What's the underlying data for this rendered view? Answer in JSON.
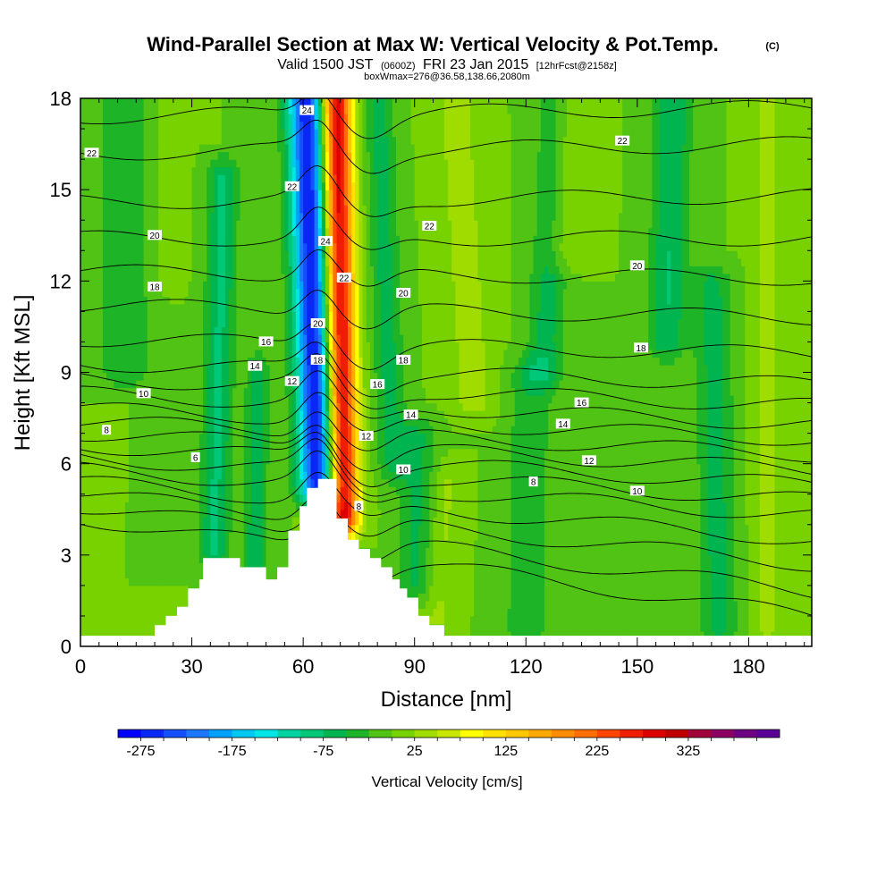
{
  "header": {
    "title": "Wind-Parallel Section at Max W: Vertical Velocity & Pot.Temp.",
    "copyright": "(C)",
    "valid_prefix": "Valid 1500 JST",
    "valid_utc": "(0600Z)",
    "valid_date": "FRI 23 Jan 2015",
    "forecast": "[12hrFcst@2158z]",
    "box_info": "boxWmax=276@36.58,138.66,2080m"
  },
  "chart_data": {
    "type": "heatmap",
    "xlabel": "Distance [nm]",
    "ylabel": "Height [Kft MSL]",
    "xlim": [
      0,
      197
    ],
    "ylim": [
      0,
      18
    ],
    "x_ticks": [
      0,
      30,
      60,
      90,
      120,
      150,
      180
    ],
    "y_ticks": [
      0,
      3,
      6,
      9,
      12,
      15,
      18
    ],
    "x_tick_labels": [
      "0",
      "30",
      "60",
      "90",
      "120",
      "150",
      "180"
    ],
    "y_tick_labels": [
      "0",
      "3",
      "6",
      "9",
      "12",
      "15",
      "18"
    ],
    "colorbar": {
      "label": "Vertical Velocity [cm/s]",
      "min": -300,
      "step": 25,
      "tick_values": [
        -275,
        -175,
        -75,
        25,
        125,
        225,
        325
      ],
      "tick_labels": [
        "-275",
        "-175",
        "-75",
        "25",
        "125",
        "225",
        "325"
      ],
      "colors": [
        "#0000ff",
        "#0a28f5",
        "#1450ff",
        "#1e78ff",
        "#00a0ff",
        "#00c8f0",
        "#00e6e6",
        "#00d2a0",
        "#00c878",
        "#00b450",
        "#1eb428",
        "#50c314",
        "#78d200",
        "#a0dc00",
        "#c8e600",
        "#ffff00",
        "#ffe100",
        "#ffc800",
        "#ffaa00",
        "#ff8c00",
        "#ff6e00",
        "#ff4600",
        "#f01e00",
        "#dc0000",
        "#be0000",
        "#a0003c",
        "#8c0064",
        "#6e0082",
        "#5a0096"
      ]
    },
    "terrain": [
      [
        0,
        0.35
      ],
      [
        20,
        0.35
      ],
      [
        20,
        0.7
      ],
      [
        23,
        0.7
      ],
      [
        23,
        1.0
      ],
      [
        26,
        1.0
      ],
      [
        26,
        1.3
      ],
      [
        29,
        1.3
      ],
      [
        29,
        1.9
      ],
      [
        32,
        1.9
      ],
      [
        32,
        2.2
      ],
      [
        33,
        2.2
      ],
      [
        33,
        2.9
      ],
      [
        43,
        2.9
      ],
      [
        43,
        2.6
      ],
      [
        47,
        2.6
      ],
      [
        47,
        2.6
      ],
      [
        50,
        2.6
      ],
      [
        50,
        2.2
      ],
      [
        53,
        2.2
      ],
      [
        53,
        2.6
      ],
      [
        56,
        2.6
      ],
      [
        56,
        3.8
      ],
      [
        59,
        3.8
      ],
      [
        59,
        4.6
      ],
      [
        61,
        4.6
      ],
      [
        61,
        5.2
      ],
      [
        64,
        5.2
      ],
      [
        64,
        5.5
      ],
      [
        69,
        5.5
      ],
      [
        69,
        4.2
      ],
      [
        72,
        4.2
      ],
      [
        72,
        3.5
      ],
      [
        75,
        3.5
      ],
      [
        75,
        3.2
      ],
      [
        78,
        3.2
      ],
      [
        78,
        2.9
      ],
      [
        81,
        2.9
      ],
      [
        81,
        2.6
      ],
      [
        84,
        2.6
      ],
      [
        84,
        2.2
      ],
      [
        86,
        2.2
      ],
      [
        86,
        1.9
      ],
      [
        88,
        1.9
      ],
      [
        88,
        1.6
      ],
      [
        91,
        1.6
      ],
      [
        91,
        1.0
      ],
      [
        94,
        1.0
      ],
      [
        94,
        0.7
      ],
      [
        98,
        0.7
      ],
      [
        98,
        0.35
      ],
      [
        197,
        0.35
      ]
    ],
    "theta_contours": [
      {
        "value": 4,
        "left": 4.2,
        "right": 1.0
      },
      {
        "value": 5,
        "left": 4.6,
        "right": 1.8
      },
      {
        "value": 6,
        "left": 5.0,
        "right": 2.7
      },
      {
        "value": 7,
        "left": 5.4,
        "right": 3.5
      },
      {
        "value": 8,
        "left": 5.8,
        "right": 4.3
      },
      {
        "value": 9,
        "left": 6.2,
        "right": 4.8
      },
      {
        "value": 10,
        "left": 6.6,
        "right": 5.3
      },
      {
        "value": 11,
        "left": 7.0,
        "right": 5.8
      },
      {
        "value": 12,
        "left": 7.4,
        "right": 6.3
      },
      {
        "value": 13,
        "left": 7.8,
        "right": 6.8
      },
      {
        "value": 14,
        "left": 8.3,
        "right": 7.3
      },
      {
        "value": 15,
        "left": 8.8,
        "right": 7.9
      },
      {
        "value": 16,
        "left": 9.3,
        "right": 8.6
      },
      {
        "value": 17,
        "left": 10.1,
        "right": 9.6
      },
      {
        "value": 18,
        "left": 11.2,
        "right": 10.8
      },
      {
        "value": 19,
        "left": 12.3,
        "right": 12.1
      },
      {
        "value": 20,
        "left": 13.4,
        "right": 13.4
      },
      {
        "value": 21,
        "left": 14.6,
        "right": 14.8
      },
      {
        "value": 22,
        "left": 16.2,
        "right": 16.5
      },
      {
        "value": 23,
        "left": 17.4,
        "right": 17.7
      }
    ],
    "contour_labels": [
      {
        "text": "6",
        "x": 31,
        "y": 6.2
      },
      {
        "text": "8",
        "x": 7,
        "y": 7.1
      },
      {
        "text": "10",
        "x": 17,
        "y": 8.3
      },
      {
        "text": "12",
        "x": 57,
        "y": 8.7
      },
      {
        "text": "14",
        "x": 47,
        "y": 9.2
      },
      {
        "text": "16",
        "x": 50,
        "y": 10.0
      },
      {
        "text": "18",
        "x": 20,
        "y": 11.8
      },
      {
        "text": "20",
        "x": 20,
        "y": 13.5
      },
      {
        "text": "22",
        "x": 57,
        "y": 15.1
      },
      {
        "text": "22",
        "x": 3,
        "y": 16.2
      },
      {
        "text": "24",
        "x": 61,
        "y": 17.6
      },
      {
        "text": "24",
        "x": 66,
        "y": 13.3
      },
      {
        "text": "20",
        "x": 64,
        "y": 10.6
      },
      {
        "text": "18",
        "x": 64,
        "y": 9.4
      },
      {
        "text": "22",
        "x": 71,
        "y": 12.1
      },
      {
        "text": "20",
        "x": 87,
        "y": 11.6
      },
      {
        "text": "22",
        "x": 94,
        "y": 13.8
      },
      {
        "text": "18",
        "x": 87,
        "y": 9.4
      },
      {
        "text": "16",
        "x": 80,
        "y": 8.6
      },
      {
        "text": "14",
        "x": 89,
        "y": 7.6
      },
      {
        "text": "12",
        "x": 77,
        "y": 6.9
      },
      {
        "text": "10",
        "x": 87,
        "y": 5.8
      },
      {
        "text": "8",
        "x": 75,
        "y": 4.6
      },
      {
        "text": "22",
        "x": 146,
        "y": 16.6
      },
      {
        "text": "20",
        "x": 150,
        "y": 12.5
      },
      {
        "text": "18",
        "x": 151,
        "y": 9.8
      },
      {
        "text": "16",
        "x": 135,
        "y": 8.0
      },
      {
        "text": "14",
        "x": 130,
        "y": 7.3
      },
      {
        "text": "12",
        "x": 137,
        "y": 6.1
      },
      {
        "text": "8",
        "x": 122,
        "y": 5.4
      },
      {
        "text": "10",
        "x": 150,
        "y": 5.1
      }
    ],
    "w_features": [
      {
        "x": 64,
        "y0": 5.2,
        "y1": 18,
        "lean": -0.25,
        "width": 5.0,
        "amp": -275
      },
      {
        "x": 71,
        "y0": 4.2,
        "y1": 18,
        "lean": -0.15,
        "width": 4.0,
        "amp": 300
      },
      {
        "x": 36,
        "y0": 3.0,
        "y1": 15.5,
        "lean": 0.2,
        "width": 4.0,
        "amp": -80
      },
      {
        "x": 47,
        "y0": 1.5,
        "y1": 9.0,
        "lean": 0.1,
        "width": 3.0,
        "amp": -70
      },
      {
        "x": 84,
        "y0": 6.0,
        "y1": 18,
        "lean": -0.3,
        "width": 4.0,
        "amp": -60
      },
      {
        "x": 90,
        "y0": 2.0,
        "y1": 7.0,
        "lean": 0.2,
        "width": 5.0,
        "amp": -55
      },
      {
        "x": 96,
        "y0": 0.8,
        "y1": 5.5,
        "lean": 0.6,
        "width": 4.0,
        "amp": 30
      },
      {
        "x": 106,
        "y0": 8.0,
        "y1": 18,
        "lean": -0.5,
        "width": 6.0,
        "amp": 35
      },
      {
        "x": 125,
        "y0": 9.0,
        "y1": 18,
        "lean": 0.3,
        "width": 5.0,
        "amp": -60
      },
      {
        "x": 130,
        "y0": 13.0,
        "y1": 18,
        "lean": 0.2,
        "width": 6.0,
        "amp": 40
      },
      {
        "x": 158,
        "y0": 10.0,
        "y1": 18,
        "lean": 0.2,
        "width": 5.0,
        "amp": -75
      },
      {
        "x": 172,
        "y0": 0.5,
        "y1": 12.0,
        "lean": -0.15,
        "width": 5.0,
        "amp": -60
      },
      {
        "x": 185,
        "y0": 0.5,
        "y1": 18,
        "lean": 0.0,
        "width": 4.0,
        "amp": 30
      },
      {
        "x": 120,
        "y0": 0.5,
        "y1": 9.0,
        "lean": 0.15,
        "width": 6.0,
        "amp": -45
      },
      {
        "x": 12,
        "y0": 9.0,
        "y1": 18,
        "lean": 0.0,
        "width": 8.0,
        "amp": -45
      },
      {
        "x": 22,
        "y0": 12.0,
        "y1": 18,
        "lean": 0.1,
        "width": 5.0,
        "amp": 15
      }
    ]
  }
}
